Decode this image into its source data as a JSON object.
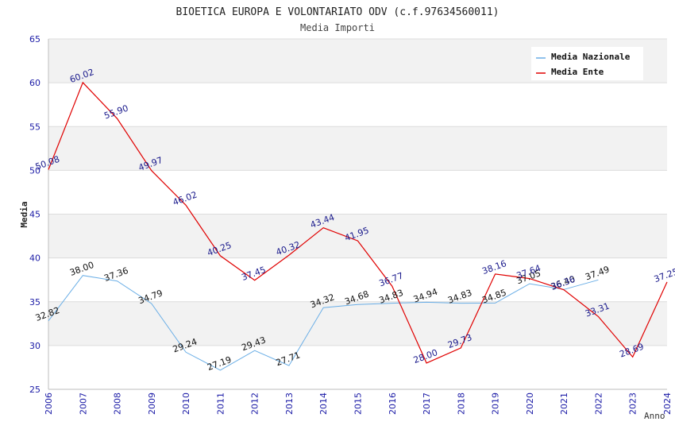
{
  "chart_data": {
    "type": "line",
    "title": "BIOETICA EUROPA E VOLONTARIATO ODV (c.f.97634560011)",
    "subtitle": "Media Importi",
    "xlabel": "Anno",
    "ylabel": "Media",
    "ylim": [
      25,
      65
    ],
    "yticks": [
      "25",
      "30",
      "35",
      "40",
      "45",
      "50",
      "55",
      "60",
      "65"
    ],
    "categories": [
      "2006",
      "2007",
      "2008",
      "2009",
      "2010",
      "2011",
      "2012",
      "2013",
      "2014",
      "2015",
      "2016",
      "2017",
      "2018",
      "2019",
      "2020",
      "2021",
      "2022",
      "2023",
      "2024"
    ],
    "legend_position": "top-right",
    "series": [
      {
        "name": "Media Nazionale",
        "color": "#6aaee6",
        "values": [
          32.82,
          38.0,
          37.36,
          34.79,
          29.24,
          27.19,
          29.43,
          27.71,
          34.32,
          34.68,
          34.83,
          34.94,
          34.83,
          34.85,
          37.05,
          36.4,
          37.49,
          null,
          null
        ],
        "labels": [
          "32.82",
          "38.00",
          "37.36",
          "34.79",
          "29.24",
          "27.19",
          "29.43",
          "27.71",
          "34.32",
          "34.68",
          "34.83",
          "34.94",
          "34.83",
          "34.85",
          "37.05",
          "36.40",
          "37.49",
          "",
          ""
        ]
      },
      {
        "name": "Media Ente",
        "color": "#e00000",
        "values": [
          50.08,
          60.02,
          55.9,
          49.97,
          46.02,
          40.25,
          37.45,
          40.32,
          43.44,
          41.95,
          36.77,
          28.0,
          29.73,
          38.16,
          37.64,
          36.36,
          33.31,
          28.69,
          37.25
        ],
        "labels": [
          "50.08",
          "60.02",
          "55.90",
          "49.97",
          "46.02",
          "40.25",
          "37.45",
          "40.32",
          "43.44",
          "41.95",
          "36.77",
          "28.00",
          "29.73",
          "38.16",
          "37.64",
          "36.36",
          "33.31",
          "28.69",
          "37.25"
        ]
      }
    ]
  }
}
